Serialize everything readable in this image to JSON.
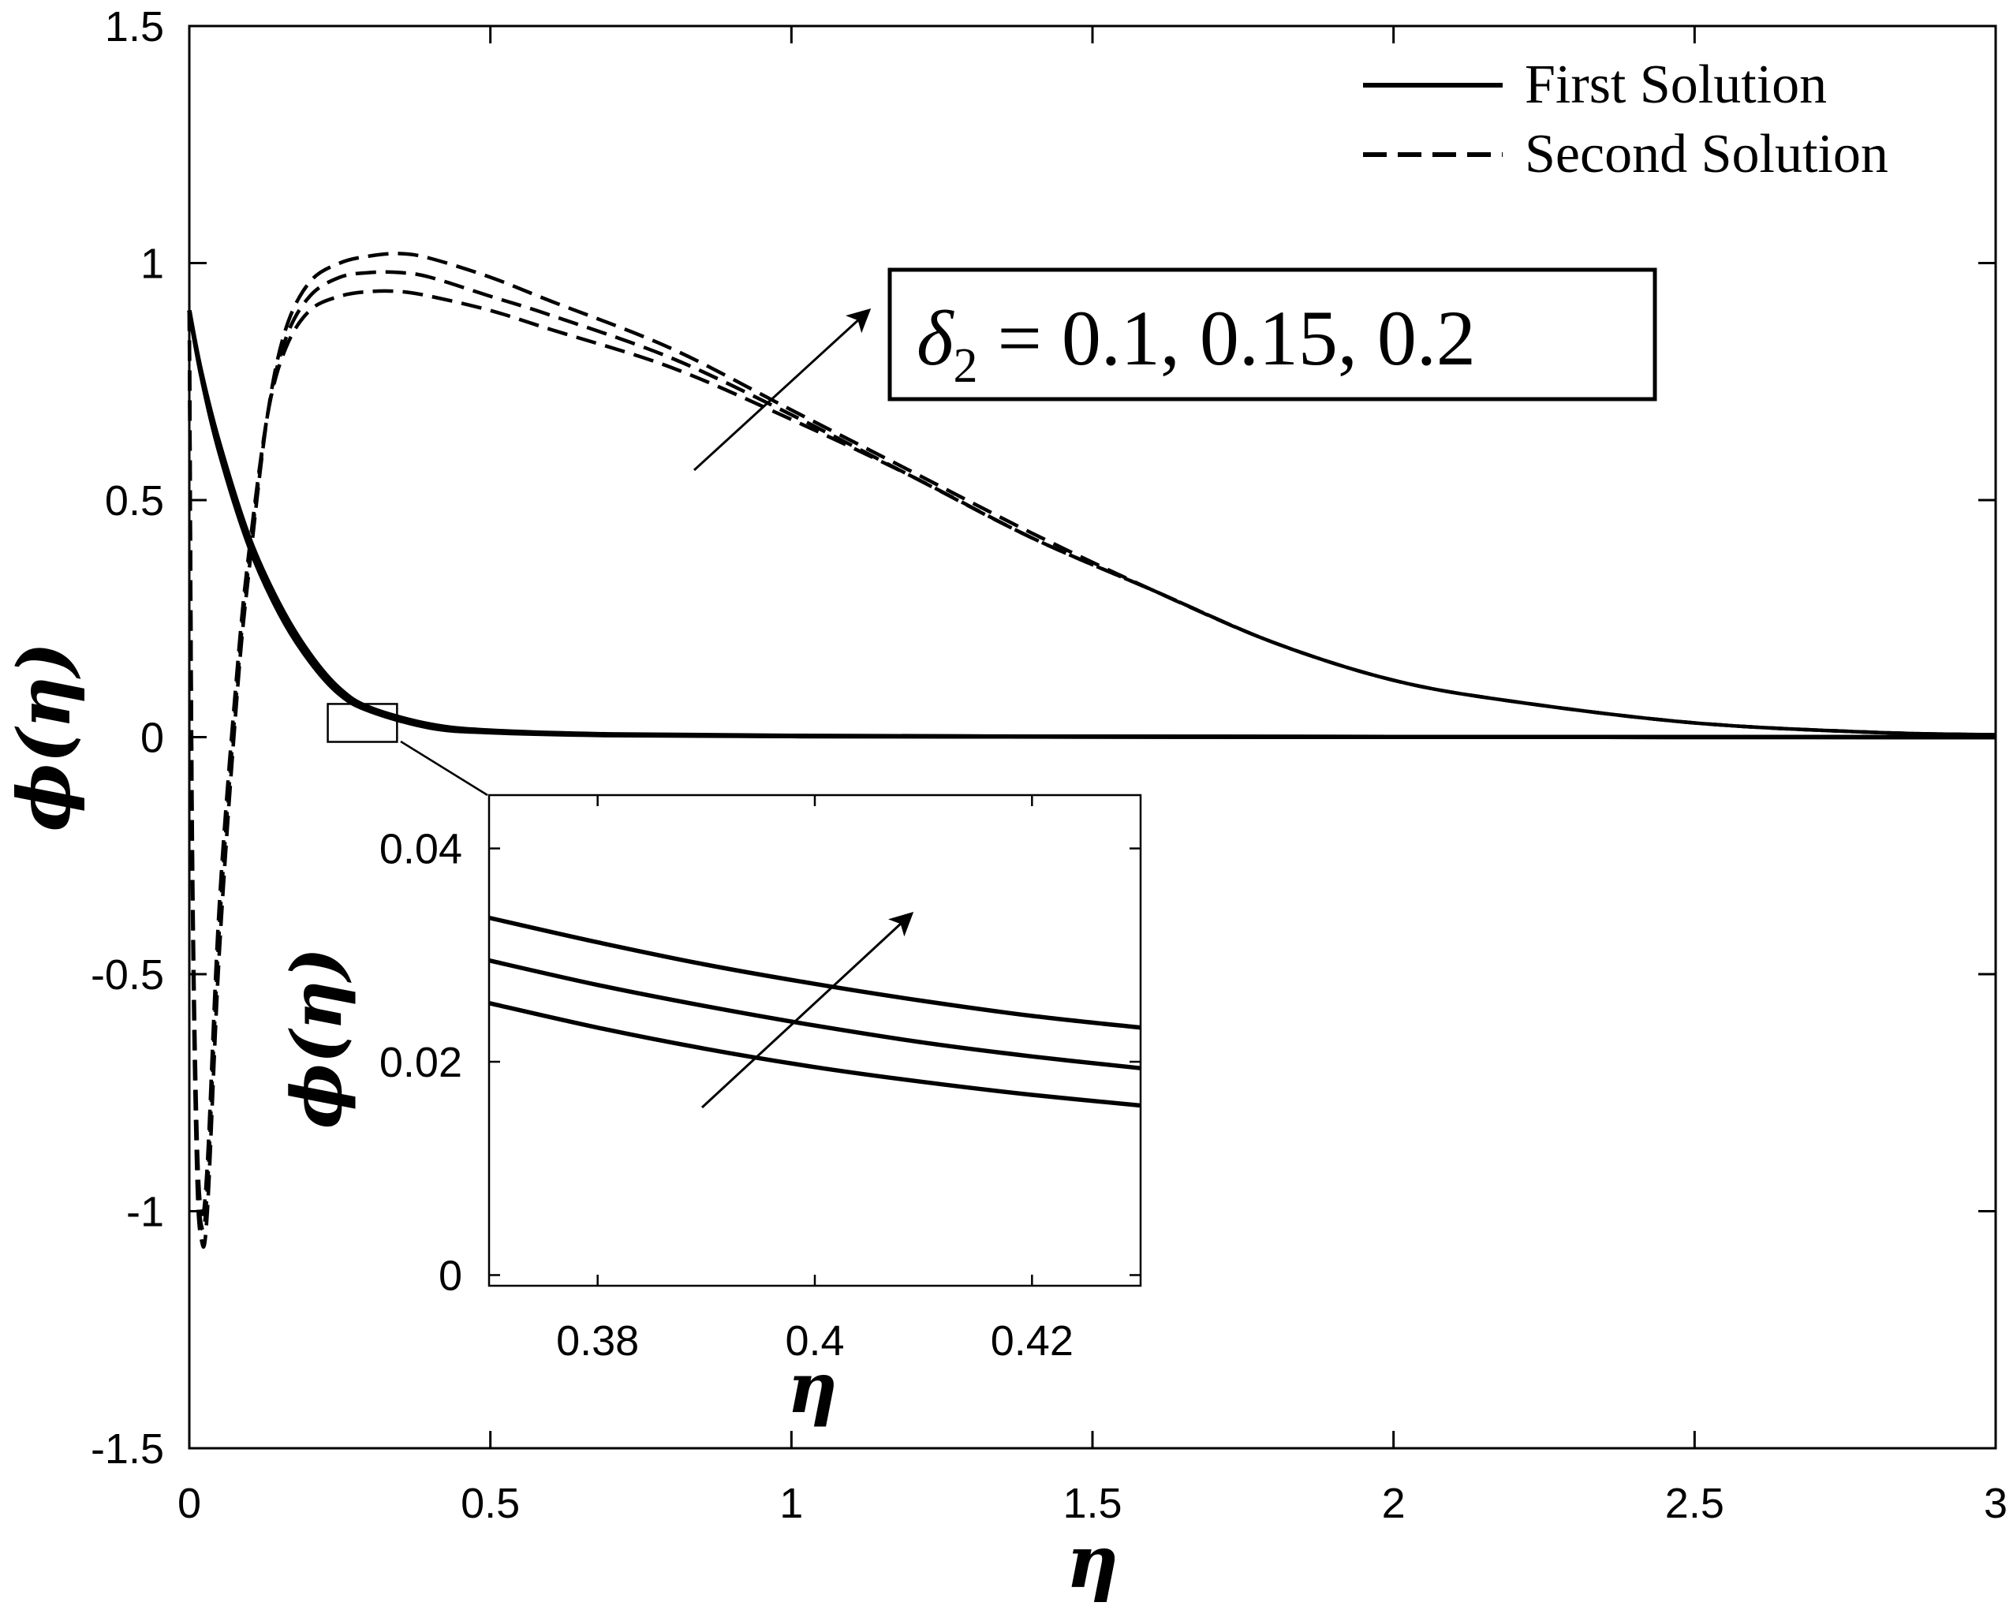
{
  "chart_data": {
    "type": "line",
    "xlabel": "η",
    "ylabel": "ϕ(η)",
    "xlim": [
      0,
      3
    ],
    "ylim": [
      -1.5,
      1.5
    ],
    "x_ticks": [
      "0",
      "0.5",
      "1",
      "1.5",
      "2",
      "2.5",
      "3"
    ],
    "y_ticks": [
      "-1.5",
      "-1",
      "-0.5",
      "0",
      "0.5",
      "1",
      "1.5"
    ],
    "legend": {
      "position": "top-right",
      "entries": [
        {
          "label": "First Solution",
          "style": "solid"
        },
        {
          "label": "Second Solution",
          "style": "dashed"
        }
      ]
    },
    "annotation": {
      "symbol": "δ",
      "subscript": "2",
      "equals": " = ",
      "values": "0.1, 0.15, 0.2"
    },
    "series": [
      {
        "style": "solid",
        "x": [
          0,
          0.02,
          0.05,
          0.1,
          0.15,
          0.2,
          0.25,
          0.3,
          0.4,
          0.5,
          0.7,
          1.0,
          1.5,
          2.0,
          3.0
        ],
        "y": [
          0.9,
          0.76,
          0.6,
          0.4,
          0.26,
          0.16,
          0.09,
          0.055,
          0.02,
          0.01,
          0.004,
          0.002,
          0.001,
          0.0005,
          0.0
        ]
      },
      {
        "style": "solid",
        "x": [
          0,
          0.02,
          0.05,
          0.1,
          0.15,
          0.2,
          0.25,
          0.3,
          0.4,
          0.5,
          0.7,
          1.0,
          1.5,
          2.0,
          3.0
        ],
        "y": [
          0.9,
          0.765,
          0.61,
          0.41,
          0.27,
          0.168,
          0.096,
          0.058,
          0.024,
          0.012,
          0.005,
          0.002,
          0.001,
          0.0005,
          0.0
        ]
      },
      {
        "style": "solid",
        "x": [
          0,
          0.02,
          0.05,
          0.1,
          0.15,
          0.2,
          0.25,
          0.3,
          0.4,
          0.5,
          0.7,
          1.0,
          1.5,
          2.0,
          3.0
        ],
        "y": [
          0.9,
          0.77,
          0.62,
          0.42,
          0.28,
          0.176,
          0.102,
          0.062,
          0.027,
          0.014,
          0.006,
          0.003,
          0.001,
          0.0005,
          0.0
        ]
      },
      {
        "style": "dashed",
        "x": [
          0,
          0.005,
          0.012,
          0.02,
          0.03,
          0.05,
          0.08,
          0.1,
          0.13,
          0.16,
          0.2,
          0.25,
          0.3,
          0.35,
          0.4,
          0.5,
          0.6,
          0.8,
          1.0,
          1.2,
          1.4,
          1.6,
          1.8,
          2.0,
          2.2,
          2.5,
          2.8,
          3.0
        ],
        "y": [
          0.9,
          -0.2,
          -0.8,
          -1.0,
          -0.9,
          -0.35,
          0.15,
          0.4,
          0.68,
          0.82,
          0.9,
          0.93,
          0.94,
          0.94,
          0.93,
          0.9,
          0.86,
          0.78,
          0.67,
          0.55,
          0.42,
          0.31,
          0.2,
          0.12,
          0.075,
          0.03,
          0.01,
          0.005
        ]
      },
      {
        "style": "dashed",
        "x": [
          0,
          0.005,
          0.012,
          0.02,
          0.03,
          0.05,
          0.08,
          0.1,
          0.13,
          0.16,
          0.2,
          0.25,
          0.3,
          0.35,
          0.4,
          0.5,
          0.6,
          0.8,
          1.0,
          1.2,
          1.4,
          1.6,
          1.8,
          2.0,
          2.2,
          2.5,
          2.8,
          3.0
        ],
        "y": [
          0.9,
          -0.25,
          -0.85,
          -1.03,
          -0.95,
          -0.4,
          0.12,
          0.38,
          0.68,
          0.84,
          0.93,
          0.97,
          0.98,
          0.98,
          0.97,
          0.93,
          0.89,
          0.8,
          0.68,
          0.55,
          0.42,
          0.31,
          0.2,
          0.12,
          0.075,
          0.03,
          0.01,
          0.005
        ]
      },
      {
        "style": "dashed",
        "x": [
          0,
          0.005,
          0.012,
          0.02,
          0.03,
          0.05,
          0.08,
          0.1,
          0.13,
          0.16,
          0.2,
          0.25,
          0.3,
          0.35,
          0.4,
          0.5,
          0.6,
          0.8,
          1.0,
          1.2,
          1.4,
          1.6,
          1.8,
          2.0,
          2.2,
          2.5,
          2.8,
          3.0
        ],
        "y": [
          0.9,
          -0.3,
          -0.9,
          -1.06,
          -1.0,
          -0.45,
          0.1,
          0.36,
          0.68,
          0.86,
          0.96,
          1.0,
          1.015,
          1.02,
          1.01,
          0.97,
          0.92,
          0.82,
          0.69,
          0.56,
          0.43,
          0.31,
          0.2,
          0.12,
          0.075,
          0.03,
          0.01,
          0.005
        ]
      }
    ],
    "zoom_box": {
      "xlim": [
        0.23,
        0.345
      ],
      "ylim": [
        -0.01,
        0.07
      ]
    },
    "inset": {
      "xlabel": "η",
      "ylabel": "ϕ(η)",
      "xlim": [
        0.37,
        0.43
      ],
      "ylim": [
        -0.001,
        0.045
      ],
      "x_ticks": [
        "0.38",
        "0.4",
        "0.42"
      ],
      "y_ticks": [
        "0",
        "0.02",
        "0.04"
      ],
      "series": [
        {
          "style": "solid",
          "x": [
            0.37,
            0.38,
            0.39,
            0.4,
            0.41,
            0.42,
            0.43
          ],
          "y": [
            0.0335,
            0.0312,
            0.0291,
            0.0273,
            0.0257,
            0.0243,
            0.0232
          ]
        },
        {
          "style": "solid",
          "x": [
            0.37,
            0.38,
            0.39,
            0.4,
            0.41,
            0.42,
            0.43
          ],
          "y": [
            0.0295,
            0.0272,
            0.0252,
            0.0234,
            0.0218,
            0.0205,
            0.0194
          ]
        },
        {
          "style": "solid",
          "x": [
            0.37,
            0.38,
            0.39,
            0.4,
            0.41,
            0.42,
            0.43
          ],
          "y": [
            0.0255,
            0.0232,
            0.0212,
            0.0195,
            0.0181,
            0.0169,
            0.0159
          ]
        }
      ]
    }
  }
}
